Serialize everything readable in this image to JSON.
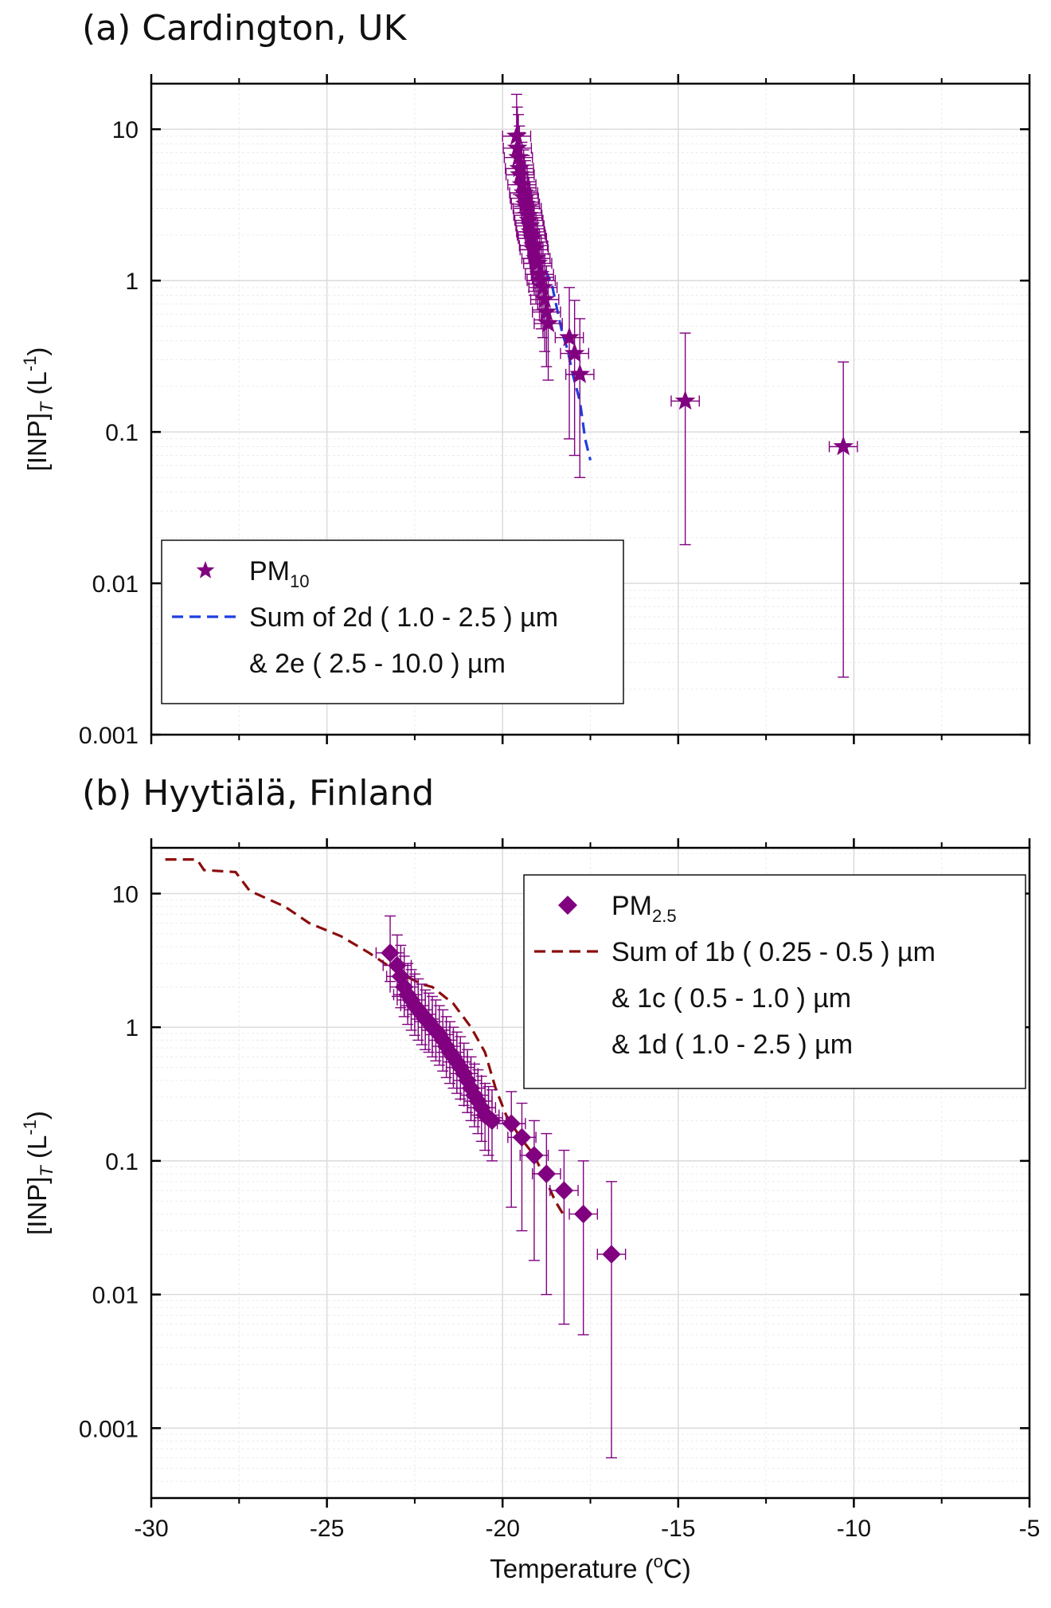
{
  "colors": {
    "marker": "#800080",
    "fit_a": "#1f3fe0",
    "fit_b": "#8b0d0d",
    "grid": "#d9d9d9",
    "minor_grid": "#ececec"
  },
  "chart_data": [
    {
      "type": "scatter",
      "title": "(a) Cardington, UK",
      "xlabel": "Temperature (oC)",
      "ylabel": "[INP]T (L-1)",
      "xscale": "linear",
      "yscale": "log",
      "xlim": [
        -30,
        -5
      ],
      "ylim": [
        0.001,
        20
      ],
      "xticks": [
        "-30",
        "-25",
        "-20",
        "-15",
        "-10",
        "-5"
      ],
      "yticks": [
        "0.001",
        "0.01",
        "0.1",
        "1",
        "10"
      ],
      "show_x_tick_labels": false,
      "legend": {
        "position": "bottom-left",
        "entries": [
          {
            "lines": [
              {
                "text": "PM",
                "sub": "10"
              }
            ]
          },
          {
            "lines": [
              {
                "text": "Sum of 2d ( 1.0 - 2.5 ) µm"
              },
              {
                "text": "& 2e ( 2.5 - 10.0 )  µm"
              }
            ]
          }
        ]
      },
      "series": [
        {
          "name": "PM10",
          "kind": "points",
          "marker": "star",
          "x": [
            -19.6,
            -19.58,
            -19.55,
            -19.52,
            -19.5,
            -19.45,
            -19.4,
            -19.38,
            -19.35,
            -19.3,
            -19.28,
            -19.25,
            -19.22,
            -19.2,
            -19.18,
            -19.15,
            -19.12,
            -19.1,
            -19.05,
            -19.0,
            -18.95,
            -18.9,
            -18.85,
            -18.8,
            -18.75,
            -18.7,
            -18.1,
            -17.95,
            -17.8,
            -14.8,
            -10.3
          ],
          "y": [
            9.0,
            7.5,
            6.5,
            5.5,
            5.0,
            4.3,
            3.8,
            3.5,
            3.2,
            3.0,
            2.7,
            2.5,
            2.3,
            2.1,
            2.0,
            1.9,
            1.7,
            1.6,
            1.4,
            1.3,
            1.1,
            1.0,
            0.9,
            0.75,
            0.62,
            0.52,
            0.42,
            0.33,
            0.24,
            0.16,
            0.08
          ],
          "ylow": [
            5.2,
            4.3,
            3.7,
            3.1,
            2.8,
            2.4,
            2.1,
            1.9,
            1.7,
            1.6,
            1.4,
            1.3,
            1.2,
            1.1,
            1.0,
            0.95,
            0.85,
            0.8,
            0.7,
            0.64,
            0.55,
            0.48,
            0.42,
            0.34,
            0.27,
            0.22,
            0.09,
            0.07,
            0.05,
            0.018,
            0.0024
          ],
          "yhigh": [
            17.0,
            14.0,
            12.5,
            10.5,
            9.5,
            8.2,
            7.3,
            6.7,
            6.2,
            5.8,
            5.2,
            4.8,
            4.5,
            4.1,
            3.9,
            3.7,
            3.3,
            3.1,
            2.8,
            2.6,
            2.2,
            2.0,
            1.8,
            1.5,
            1.25,
            1.05,
            0.9,
            0.74,
            0.56,
            0.45,
            0.29
          ],
          "xerr": 0.4
        },
        {
          "name": "Sum of 2d & 2e",
          "kind": "line",
          "dash": true,
          "x": [
            -19.0,
            -18.8,
            -18.6,
            -18.45,
            -18.3,
            -18.15,
            -18.0,
            -17.8,
            -17.65,
            -17.5
          ],
          "y": [
            1.5,
            1.2,
            0.95,
            0.65,
            0.45,
            0.35,
            0.24,
            0.16,
            0.09,
            0.065
          ]
        }
      ]
    },
    {
      "type": "scatter",
      "title": "(b) Hyytiälä, Finland",
      "xlabel": "Temperature (oC)",
      "ylabel": "[INP]T (L-1)",
      "xscale": "linear",
      "yscale": "log",
      "xlim": [
        -30,
        -5
      ],
      "ylim": [
        0.0003,
        22
      ],
      "xticks": [
        "-30",
        "-25",
        "-20",
        "-15",
        "-10",
        "-5"
      ],
      "yticks": [
        "0.001",
        "0.01",
        "0.1",
        "1",
        "10"
      ],
      "show_x_tick_labels": true,
      "legend": {
        "position": "top-right",
        "entries": [
          {
            "lines": [
              {
                "text": "PM",
                "sub": "2.5"
              }
            ]
          },
          {
            "lines": [
              {
                "text": "Sum of 1b ( 0.25 - 0.5 )  µm"
              },
              {
                "text": "& 1c ( 0.5 - 1.0 )  µm"
              },
              {
                "text": "& 1d ( 1.0 - 2.5 )  µm"
              }
            ]
          }
        ]
      },
      "series": [
        {
          "name": "PM2.5",
          "kind": "points",
          "marker": "diamond",
          "x": [
            -23.2,
            -23.0,
            -22.9,
            -22.8,
            -22.7,
            -22.6,
            -22.5,
            -22.4,
            -22.3,
            -22.2,
            -22.1,
            -22.0,
            -21.9,
            -21.8,
            -21.7,
            -21.6,
            -21.5,
            -21.4,
            -21.3,
            -21.2,
            -21.1,
            -21.0,
            -20.9,
            -20.8,
            -20.7,
            -20.6,
            -20.5,
            -20.4,
            -20.3,
            -19.75,
            -19.45,
            -19.1,
            -18.75,
            -18.25,
            -17.7,
            -16.9
          ],
          "y": [
            3.6,
            2.9,
            2.4,
            2.0,
            1.75,
            1.6,
            1.45,
            1.35,
            1.25,
            1.15,
            1.1,
            1.0,
            0.95,
            0.88,
            0.8,
            0.72,
            0.65,
            0.6,
            0.55,
            0.5,
            0.45,
            0.4,
            0.35,
            0.31,
            0.28,
            0.25,
            0.22,
            0.21,
            0.2,
            0.19,
            0.15,
            0.11,
            0.08,
            0.06,
            0.04,
            0.02
          ],
          "ylow": [
            2.2,
            1.7,
            1.4,
            1.2,
            1.05,
            0.95,
            0.87,
            0.8,
            0.74,
            0.68,
            0.65,
            0.6,
            0.56,
            0.52,
            0.47,
            0.42,
            0.38,
            0.35,
            0.32,
            0.29,
            0.26,
            0.23,
            0.2,
            0.18,
            0.16,
            0.14,
            0.12,
            0.11,
            0.1,
            0.045,
            0.03,
            0.018,
            0.01,
            0.006,
            0.005,
            0.0006
          ],
          "yhigh": [
            6.8,
            4.9,
            4.1,
            3.4,
            3.0,
            2.7,
            2.5,
            2.3,
            2.1,
            1.9,
            1.8,
            1.7,
            1.6,
            1.45,
            1.35,
            1.2,
            1.1,
            1.0,
            0.92,
            0.85,
            0.76,
            0.68,
            0.6,
            0.53,
            0.48,
            0.43,
            0.38,
            0.36,
            0.34,
            0.33,
            0.27,
            0.2,
            0.16,
            0.12,
            0.1,
            0.07
          ],
          "xerr": 0.4
        },
        {
          "name": "Sum of 1b & 1c & 1d",
          "kind": "line",
          "dash": true,
          "x": [
            -29.6,
            -28.7,
            -28.5,
            -27.6,
            -27.2,
            -26.2,
            -25.5,
            -24.6,
            -23.8,
            -23.0,
            -22.3,
            -22.0,
            -21.4,
            -20.9,
            -20.5,
            -20.2,
            -19.9,
            -19.5,
            -19.1,
            -18.8,
            -18.5,
            -18.2
          ],
          "y": [
            18.0,
            18.0,
            15.0,
            14.5,
            10.5,
            8.0,
            6.0,
            4.8,
            3.6,
            2.6,
            2.1,
            2.0,
            1.5,
            1.0,
            0.65,
            0.35,
            0.22,
            0.15,
            0.11,
            0.075,
            0.05,
            0.037
          ]
        }
      ]
    }
  ]
}
